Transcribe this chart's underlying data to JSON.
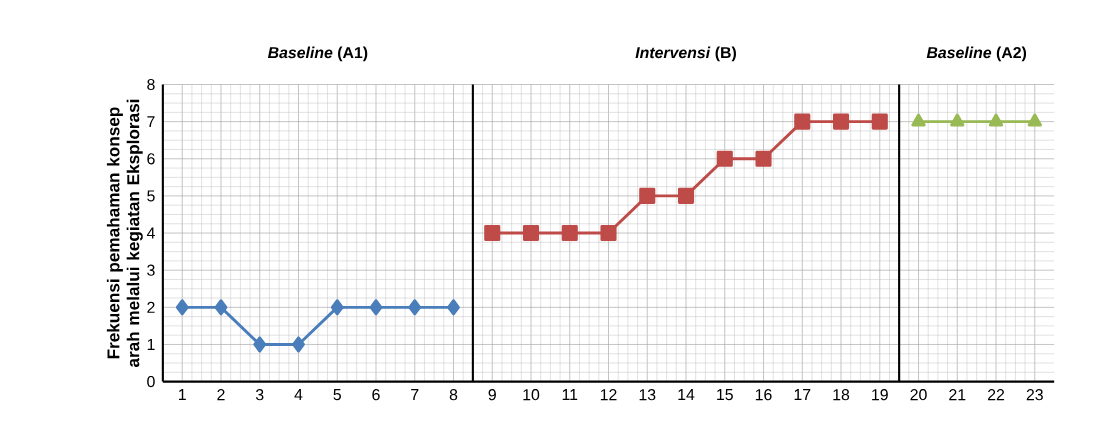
{
  "chart_data": {
    "type": "line",
    "ylabel": "Frekuensi pemahaman konsep arah melalui kegiatan Eksplorasi",
    "xlim": [
      0.5,
      23.5
    ],
    "xticks": [
      1,
      2,
      3,
      4,
      5,
      6,
      7,
      8,
      9,
      10,
      11,
      12,
      13,
      14,
      15,
      16,
      17,
      18,
      19,
      20,
      21,
      22,
      23
    ],
    "ylim": [
      0,
      8
    ],
    "yticks": [
      0,
      1,
      2,
      3,
      4,
      5,
      6,
      7,
      8
    ],
    "grid": true,
    "series": [
      {
        "color": "#4a7ebb",
        "marker": "diamond",
        "x": [
          1,
          2,
          3,
          4,
          5,
          6,
          7,
          8
        ],
        "values": [
          2,
          2,
          1,
          1,
          2,
          2,
          2,
          2
        ]
      },
      {
        "color": "#be4b48",
        "marker": "square",
        "x": [
          9,
          10,
          11,
          12,
          13,
          14,
          15,
          16,
          17,
          18,
          19
        ],
        "values": [
          4,
          4,
          4,
          4,
          5,
          5,
          6,
          6,
          7,
          7,
          7
        ]
      },
      {
        "color": "#98b954",
        "marker": "triangle",
        "x": [
          20,
          21,
          22,
          23
        ],
        "values": [
          7,
          7,
          7,
          7
        ]
      }
    ],
    "ref_lines": [
      {
        "axis": "x",
        "value": 8.5,
        "color": "#000000",
        "line_style": "solid"
      },
      {
        "axis": "x",
        "value": 19.5,
        "color": "#000000",
        "line_style": "solid"
      }
    ],
    "annotations": [
      "*Baseline* (A1)",
      "*Intervensi* (B)",
      "*Baseline* (A2)"
    ]
  }
}
